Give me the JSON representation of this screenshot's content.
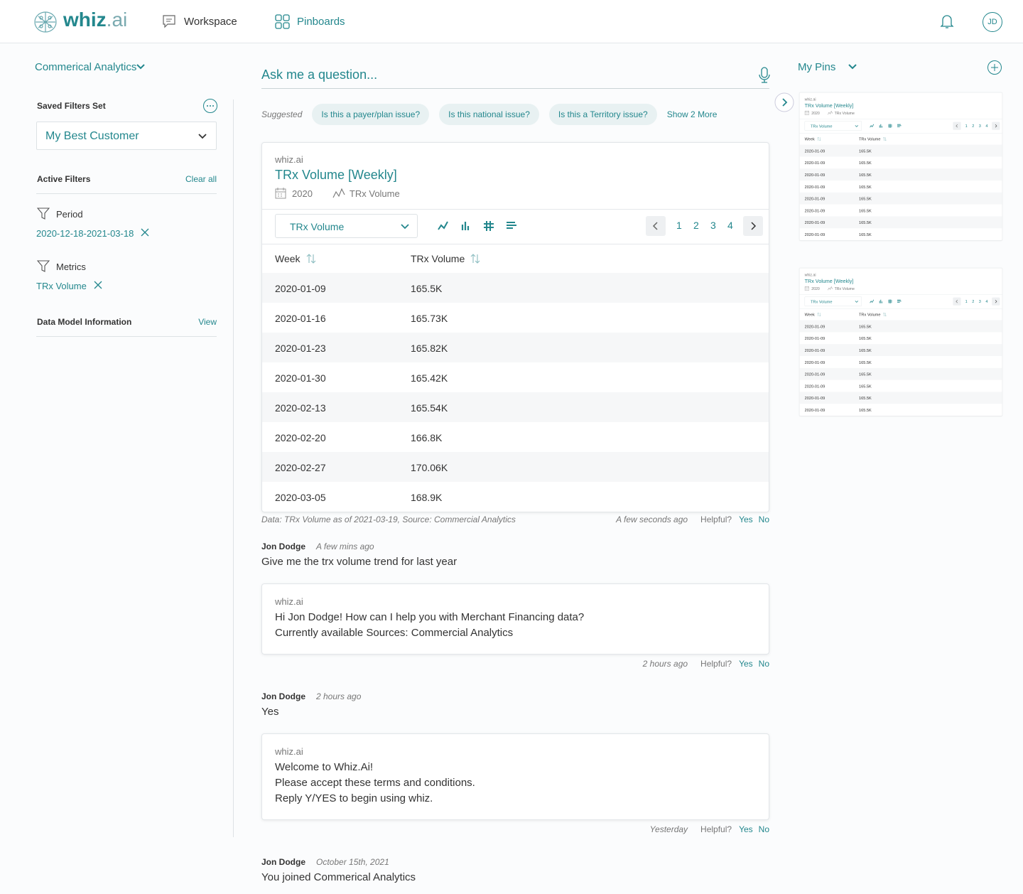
{
  "header": {
    "logo_main": "whiz",
    "logo_suffix": ".ai",
    "nav": [
      "Workspace",
      "Pinboards"
    ],
    "avatar": "JD"
  },
  "sidebar": {
    "workspace": "Commerical Analytics",
    "saved_filters_label": "Saved Filters Set",
    "saved_filter": "My Best Customer",
    "active_filters_label": "Active Filters",
    "clear_all": "Clear all",
    "filters": [
      {
        "name": "Period",
        "value": "2020-12-18-2021-03-18"
      },
      {
        "name": "Metrics",
        "value": "TRx Volume"
      }
    ],
    "data_model_label": "Data Model Information",
    "view": "View"
  },
  "chat": {
    "placeholder": "Ask me a question...",
    "suggested_label": "Suggested",
    "suggestions": [
      "Is this a payer/plan issue?",
      "Is this  national issue?",
      "Is this a Territory issue?"
    ],
    "show_more": "Show 2 More",
    "result_card": {
      "source": "whiz.ai",
      "title": "TRx Volume [Weekly]",
      "year": "2020",
      "metric": "TRx Volume",
      "selector": "TRx Volume",
      "pages": [
        1,
        2,
        3,
        4
      ],
      "columns": [
        "Week",
        "TRx Volume"
      ],
      "rows": [
        [
          "2020-01-09",
          "165.5K"
        ],
        [
          "2020-01-16",
          "165.73K"
        ],
        [
          "2020-01-23",
          "165.82K"
        ],
        [
          "2020-01-30",
          "165.42K"
        ],
        [
          "2020-02-13",
          "165.54K"
        ],
        [
          "2020-02-20",
          "166.8K"
        ],
        [
          "2020-02-27",
          "170.06K"
        ],
        [
          "2020-03-05",
          "168.9K"
        ]
      ]
    },
    "result_footer": {
      "note": "Data: TRx Volume as of 2021-03-19, Source: Commercial Analytics",
      "time": "A few seconds ago"
    },
    "helpful": "Helpful?",
    "yes": "Yes",
    "no": "No",
    "messages": [
      {
        "type": "user",
        "author": "Jon Dodge",
        "time": "A few mins ago",
        "text": "Give me the trx volume trend for last year"
      },
      {
        "type": "bot",
        "source": "whiz.ai",
        "lines": [
          "Hi Jon Dodge! How can I help you with Merchant Financing data?",
          "Currently available Sources: Commercial Analytics"
        ],
        "time": "2 hours ago"
      },
      {
        "type": "user",
        "author": "Jon Dodge",
        "time": "2 hours  ago",
        "text": "Yes"
      },
      {
        "type": "bot",
        "source": "whiz.ai",
        "lines": [
          "Welcome to Whiz.Ai!",
          "Please accept these terms and conditions.",
          "Reply Y/YES to begin using whiz."
        ],
        "time": "Yesterday"
      },
      {
        "type": "user",
        "author": "Jon Dodge",
        "time": "October 15th, 2021",
        "text": "You joined Commerical Analytics"
      }
    ]
  },
  "pins": {
    "title": "My Pins",
    "items": [
      {
        "source": "whiz.ai",
        "title": "TRx Volume [Weekly]",
        "year": "2020",
        "metric": "TRx Volume",
        "selector": "TRx Volume",
        "pages": [
          1,
          2,
          3,
          4
        ],
        "columns": [
          "Week",
          "TRx Volume"
        ],
        "rows": [
          [
            "2020-01-09",
            "165.5K"
          ],
          [
            "2020-01-09",
            "165.5K"
          ],
          [
            "2020-01-09",
            "165.5K"
          ],
          [
            "2020-01-09",
            "165.5K"
          ],
          [
            "2020-01-09",
            "165.5K"
          ],
          [
            "2020-01-09",
            "165.5K"
          ],
          [
            "2020-01-09",
            "165.5K"
          ],
          [
            "2020-01-09",
            "165.5K"
          ]
        ]
      },
      {
        "source": "whiz.ai",
        "title": "TRx Volume [Weekly]",
        "year": "2020",
        "metric": "TRx Volume",
        "selector": "TRx Volume",
        "pages": [
          1,
          2,
          3,
          4
        ],
        "columns": [
          "Week",
          "TRx Volume"
        ],
        "rows": [
          [
            "2020-01-09",
            "165.5K"
          ],
          [
            "2020-01-09",
            "165.5K"
          ],
          [
            "2020-01-09",
            "165.5K"
          ],
          [
            "2020-01-09",
            "165.5K"
          ],
          [
            "2020-01-09",
            "165.5K"
          ],
          [
            "2020-01-09",
            "165.5K"
          ],
          [
            "2020-01-09",
            "165.5K"
          ],
          [
            "2020-01-09",
            "165.5K"
          ]
        ]
      }
    ]
  }
}
